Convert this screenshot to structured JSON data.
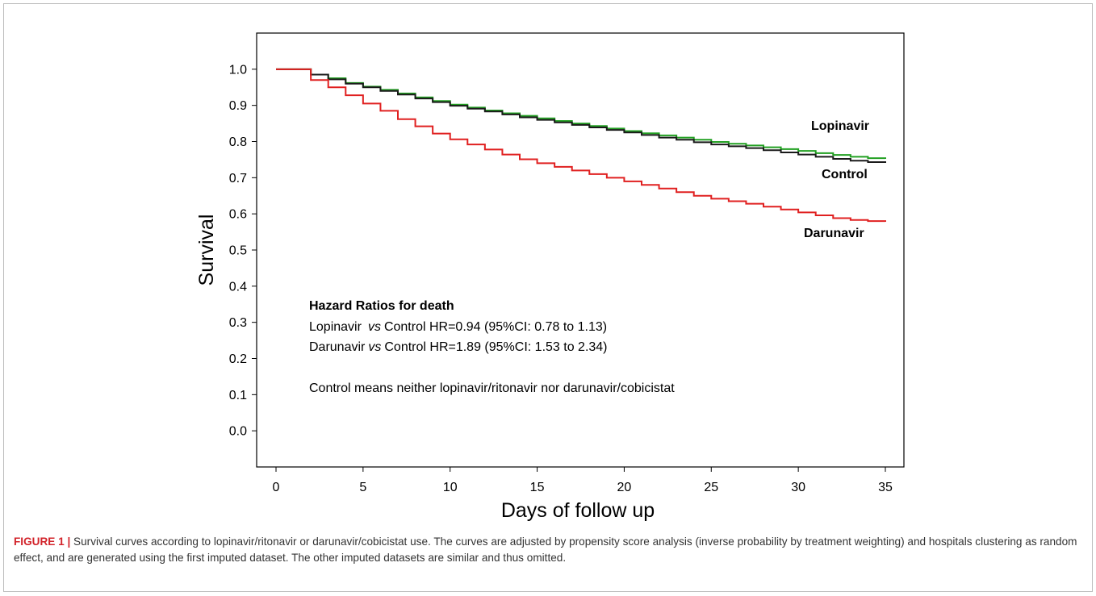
{
  "chart_data": {
    "type": "line",
    "xlabel": "Days of follow up",
    "ylabel": "Survival",
    "xlim": [
      0,
      35
    ],
    "ylim": [
      -0.1,
      1.1
    ],
    "x_ticks": [
      "0",
      "5",
      "10",
      "15",
      "20",
      "25",
      "30",
      "35"
    ],
    "y_ticks": [
      "0.0",
      "0.1",
      "0.2",
      "0.3",
      "0.4",
      "0.5",
      "0.6",
      "0.7",
      "0.8",
      "0.9",
      "1.0"
    ],
    "grid": false,
    "step": true,
    "series": [
      {
        "name": "Lopinavir",
        "color": "#22a022",
        "x": [
          0,
          2,
          3,
          4,
          5,
          6,
          7,
          8,
          9,
          10,
          11,
          12,
          13,
          14,
          15,
          16,
          17,
          18,
          19,
          20,
          21,
          22,
          23,
          24,
          25,
          26,
          27,
          28,
          29,
          30,
          31,
          32,
          33,
          34,
          35
        ],
        "y": [
          1.0,
          0.985,
          0.975,
          0.962,
          0.952,
          0.943,
          0.933,
          0.922,
          0.912,
          0.902,
          0.894,
          0.886,
          0.878,
          0.871,
          0.864,
          0.857,
          0.85,
          0.843,
          0.836,
          0.829,
          0.823,
          0.817,
          0.811,
          0.805,
          0.799,
          0.794,
          0.789,
          0.784,
          0.779,
          0.774,
          0.768,
          0.763,
          0.758,
          0.754,
          0.752
        ]
      },
      {
        "name": "Control",
        "color": "#1a1a1a",
        "x": [
          0,
          2,
          3,
          4,
          5,
          6,
          7,
          8,
          9,
          10,
          11,
          12,
          13,
          14,
          15,
          16,
          17,
          18,
          19,
          20,
          21,
          22,
          23,
          24,
          25,
          26,
          27,
          28,
          29,
          30,
          31,
          32,
          33,
          34,
          35
        ],
        "y": [
          1.0,
          0.985,
          0.972,
          0.96,
          0.95,
          0.94,
          0.93,
          0.919,
          0.909,
          0.899,
          0.891,
          0.883,
          0.875,
          0.867,
          0.86,
          0.853,
          0.846,
          0.839,
          0.832,
          0.825,
          0.818,
          0.811,
          0.805,
          0.798,
          0.792,
          0.787,
          0.782,
          0.776,
          0.77,
          0.764,
          0.758,
          0.752,
          0.747,
          0.743,
          0.741
        ]
      },
      {
        "name": "Darunavir",
        "color": "#e02020",
        "x": [
          0,
          2,
          3,
          4,
          5,
          6,
          7,
          8,
          9,
          10,
          11,
          12,
          13,
          14,
          15,
          16,
          17,
          18,
          19,
          20,
          21,
          22,
          23,
          24,
          25,
          26,
          27,
          28,
          29,
          30,
          31,
          32,
          33,
          34,
          35
        ],
        "y": [
          1.0,
          0.97,
          0.95,
          0.928,
          0.905,
          0.885,
          0.862,
          0.842,
          0.822,
          0.806,
          0.792,
          0.778,
          0.764,
          0.751,
          0.74,
          0.73,
          0.72,
          0.71,
          0.7,
          0.69,
          0.68,
          0.67,
          0.66,
          0.65,
          0.642,
          0.635,
          0.628,
          0.62,
          0.612,
          0.604,
          0.596,
          0.588,
          0.583,
          0.58,
          0.578
        ]
      }
    ],
    "annotations": {
      "heading": "Hazard Ratios for death",
      "line1_a": "Lopinavir",
      "line1_vs": "vs",
      "line1_b": "Control HR=0.94 (95%CI: 0.78 to 1.13)",
      "line2_a": "Darunavir",
      "line2_vs": "vs",
      "line2_b": "Control HR=1.89 (95%CI: 1.53 to 2.34)",
      "note": "Control means neither lopinavir/ritonavir nor darunavir/cobicistat"
    }
  },
  "caption": {
    "label": "FIGURE 1 |",
    "text": " Survival curves according to lopinavir/ritonavir or darunavir/cobicistat use. The curves are adjusted by propensity score analysis (inverse probability by treatment weighting) and hospitals clustering as random effect, and are generated using the first imputed dataset. The other imputed datasets are similar and thus omitted."
  }
}
